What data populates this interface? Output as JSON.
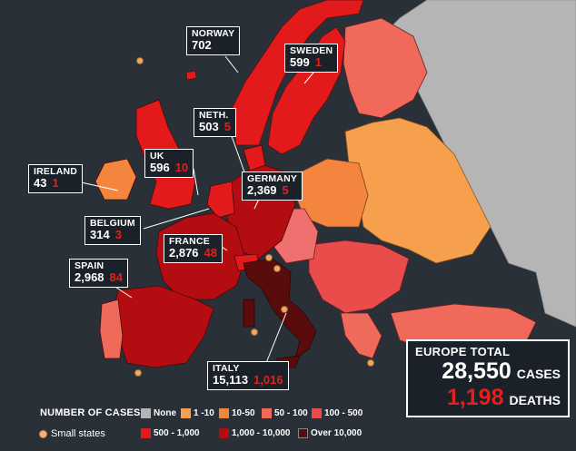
{
  "countries": [
    {
      "key": "norway",
      "name": "NORWAY",
      "cases": "702",
      "deaths": ""
    },
    {
      "key": "sweden",
      "name": "SWEDEN",
      "cases": "599",
      "deaths": "1"
    },
    {
      "key": "neth",
      "name": "NETH.",
      "cases": "503",
      "deaths": "5"
    },
    {
      "key": "uk",
      "name": "UK",
      "cases": "596",
      "deaths": "10"
    },
    {
      "key": "ireland",
      "name": "IRELAND",
      "cases": "43",
      "deaths": "1"
    },
    {
      "key": "germany",
      "name": "GERMANY",
      "cases": "2,369",
      "deaths": "5"
    },
    {
      "key": "belgium",
      "name": "BELGIUM",
      "cases": "314",
      "deaths": "3"
    },
    {
      "key": "france",
      "name": "FRANCE",
      "cases": "2,876",
      "deaths": "48"
    },
    {
      "key": "spain",
      "name": "SPAIN",
      "cases": "2,968",
      "deaths": "84"
    },
    {
      "key": "italy",
      "name": "ITALY",
      "cases": "15,113",
      "deaths": "1,016"
    }
  ],
  "total": {
    "title": "EUROPE TOTAL",
    "cases": "28,550",
    "cases_label": "CASES",
    "deaths": "1,198",
    "deaths_label": "DEATHS"
  },
  "legend": {
    "title": "NUMBER OF CASES",
    "small_states": "Small states",
    "categories": [
      {
        "label": "None",
        "color": "#b5b5b5"
      },
      {
        "label": "1 -10",
        "color": "#f6a04d"
      },
      {
        "label": "10-50",
        "color": "#f4853f"
      },
      {
        "label": "50 - 100",
        "color": "#ef6a5a"
      },
      {
        "label": "100 - 500",
        "color": "#ea4b4b"
      },
      {
        "label": "500 - 1,000",
        "color": "#e31a1c"
      },
      {
        "label": "1,000 - 10,000",
        "color": "#b30d12"
      },
      {
        "label": "Over 10,000",
        "color": "#5a0c0c"
      }
    ]
  },
  "colors": {
    "sea": "#2a3038",
    "none": "#b5b5b5",
    "deaths_text": "#e3201b"
  }
}
